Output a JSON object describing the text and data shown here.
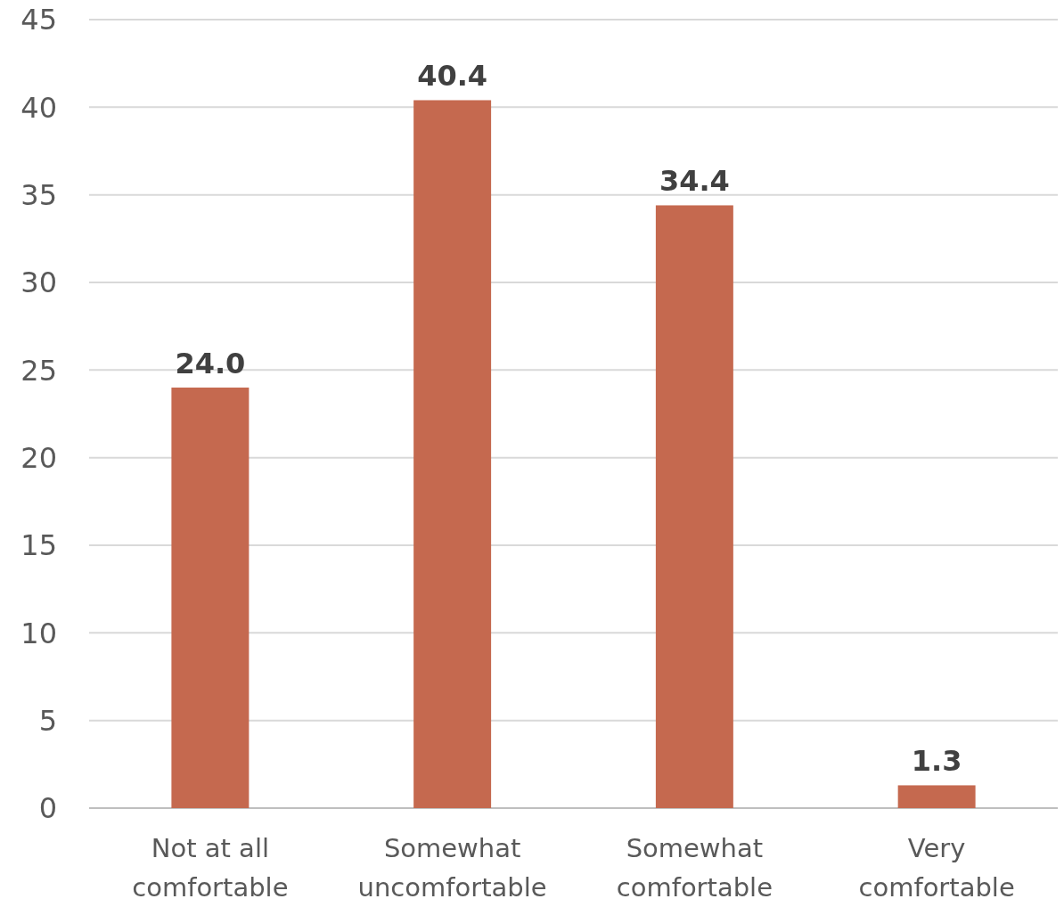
{
  "chart_data": {
    "type": "bar",
    "categories": [
      "Not at all comfortable",
      "Somewhat uncomfortable",
      "Somewhat comfortable",
      "Very comfortable"
    ],
    "values": [
      24.0,
      40.4,
      34.4,
      1.3
    ],
    "value_labels": [
      "24.0",
      "40.4",
      "34.4",
      "1.3"
    ],
    "color": "#c5694f",
    "ylim": [
      0,
      45
    ],
    "yticks": [
      0,
      5,
      10,
      15,
      20,
      25,
      30,
      35,
      40,
      45
    ],
    "grid": "y"
  }
}
